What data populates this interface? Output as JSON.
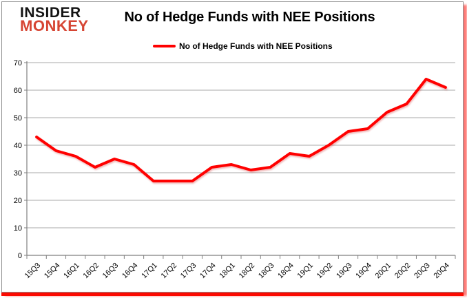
{
  "brand": {
    "line1": "INSIDER",
    "line2": "MONKEY"
  },
  "header": {
    "title": "No of Hedge Funds with NEE Positions"
  },
  "legend": {
    "label": "No of Hedge Funds with NEE Positions"
  },
  "chart_data": {
    "type": "line",
    "title": "No of Hedge Funds with NEE Positions",
    "categories": [
      "15Q3",
      "15Q4",
      "16Q1",
      "16Q2",
      "16Q3",
      "16Q4",
      "17Q1",
      "17Q2",
      "17Q3",
      "17Q4",
      "18Q1",
      "18Q2",
      "18Q3",
      "18Q4",
      "19Q1",
      "19Q2",
      "19Q3",
      "19Q4",
      "20Q1",
      "20Q2",
      "20Q3",
      "20Q4"
    ],
    "series": [
      {
        "name": "No of Hedge Funds with NEE Positions",
        "color": "#ff0000",
        "values": [
          43,
          38,
          36,
          32,
          35,
          33,
          27,
          27,
          27,
          32,
          33,
          31,
          32,
          37,
          36,
          40,
          45,
          46,
          52,
          55,
          64,
          61
        ]
      }
    ],
    "xlabel": "",
    "ylabel": "",
    "ylim": [
      0,
      70
    ],
    "ytick_step": 10,
    "grid": true,
    "legend_position": "top"
  },
  "colors": {
    "series_red": "#ff0000",
    "brand_red": "#d64533",
    "shadow_red": "#fb0a01",
    "grid_gray": "#a8a8a8",
    "axis_gray": "#7f7f7f"
  }
}
